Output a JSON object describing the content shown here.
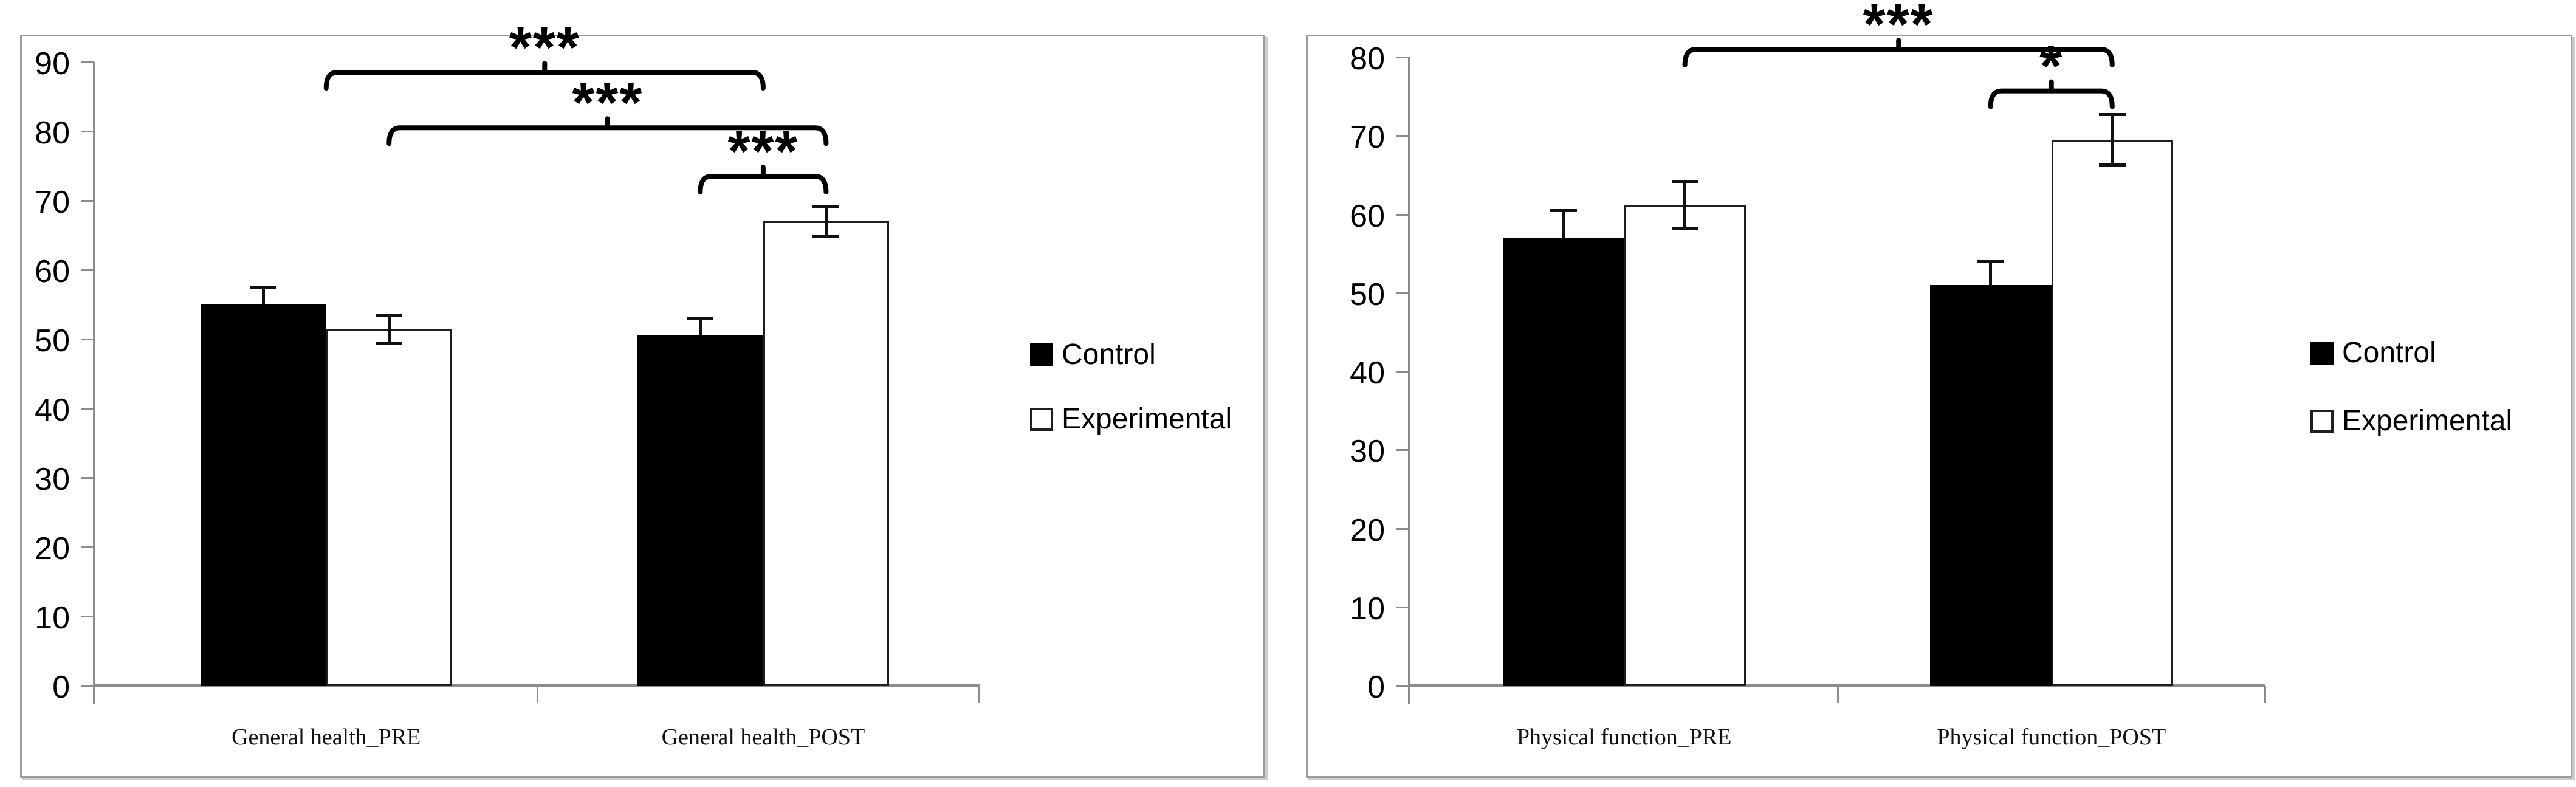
{
  "colors": {
    "bar_fill": "#000000",
    "bar_outline": "#1f1f1f",
    "axis": "#8c8c8c",
    "panel_border": "#9b9b9b",
    "background": "#ffffff",
    "annotation": "#000000"
  },
  "legend": {
    "items": [
      {
        "label": "Control",
        "swatch": "filled-black-square"
      },
      {
        "label": "Experimental",
        "swatch": "outlined-white-square"
      }
    ]
  },
  "chart_data": [
    {
      "type": "bar",
      "title": "",
      "xlabel": "",
      "ylabel": "",
      "grid": false,
      "legend_position": "right",
      "categories": [
        "General health_PRE",
        "General health_POST"
      ],
      "series": [
        {
          "name": "Control",
          "fill": "black",
          "values": [
            55,
            50.5
          ],
          "errors": [
            2.5,
            2.5
          ],
          "error_bars": "upper-only"
        },
        {
          "name": "Experimental",
          "fill": "white",
          "values": [
            51.5,
            67
          ],
          "errors": [
            2,
            2.2
          ],
          "error_bars": "full"
        }
      ],
      "ylim": [
        0,
        90
      ],
      "y_ticks": [
        "0",
        "10",
        "20",
        "30",
        "40",
        "50",
        "60",
        "70",
        "80",
        "90"
      ],
      "annotations": [
        {
          "label": "***",
          "from_category": 0,
          "from_bar": "group-center",
          "to_category": 1,
          "to_bar": "group-center",
          "line_y": 88.5
        },
        {
          "label": "***",
          "from_category": 0,
          "from_bar": "Experimental",
          "to_category": 1,
          "to_bar": "Experimental",
          "line_y": 80.5
        },
        {
          "label": "***",
          "from_category": 1,
          "from_bar": "Control",
          "to_category": 1,
          "to_bar": "Experimental",
          "line_y": 73.5
        }
      ]
    },
    {
      "type": "bar",
      "title": "",
      "xlabel": "",
      "ylabel": "",
      "grid": false,
      "legend_position": "right",
      "categories": [
        "Physical function_PRE",
        "Physical function_POST"
      ],
      "series": [
        {
          "name": "Control",
          "fill": "black",
          "values": [
            57,
            51
          ],
          "errors": [
            3.5,
            3
          ],
          "error_bars": "upper-only"
        },
        {
          "name": "Experimental",
          "fill": "white",
          "values": [
            61.2,
            69.5
          ],
          "errors": [
            3,
            3.2
          ],
          "error_bars": "full"
        }
      ],
      "ylim": [
        0,
        80
      ],
      "y_ticks": [
        "0",
        "10",
        "20",
        "30",
        "40",
        "50",
        "60",
        "70",
        "80"
      ],
      "annotations": [
        {
          "label": "***",
          "from_category": 0,
          "from_bar": "Experimental",
          "to_category": 1,
          "to_bar": "Experimental",
          "line_y": 81
        },
        {
          "label": "*",
          "from_category": 1,
          "from_bar": "Control",
          "to_category": 1,
          "to_bar": "Experimental",
          "line_y": 75.7
        }
      ]
    }
  ]
}
